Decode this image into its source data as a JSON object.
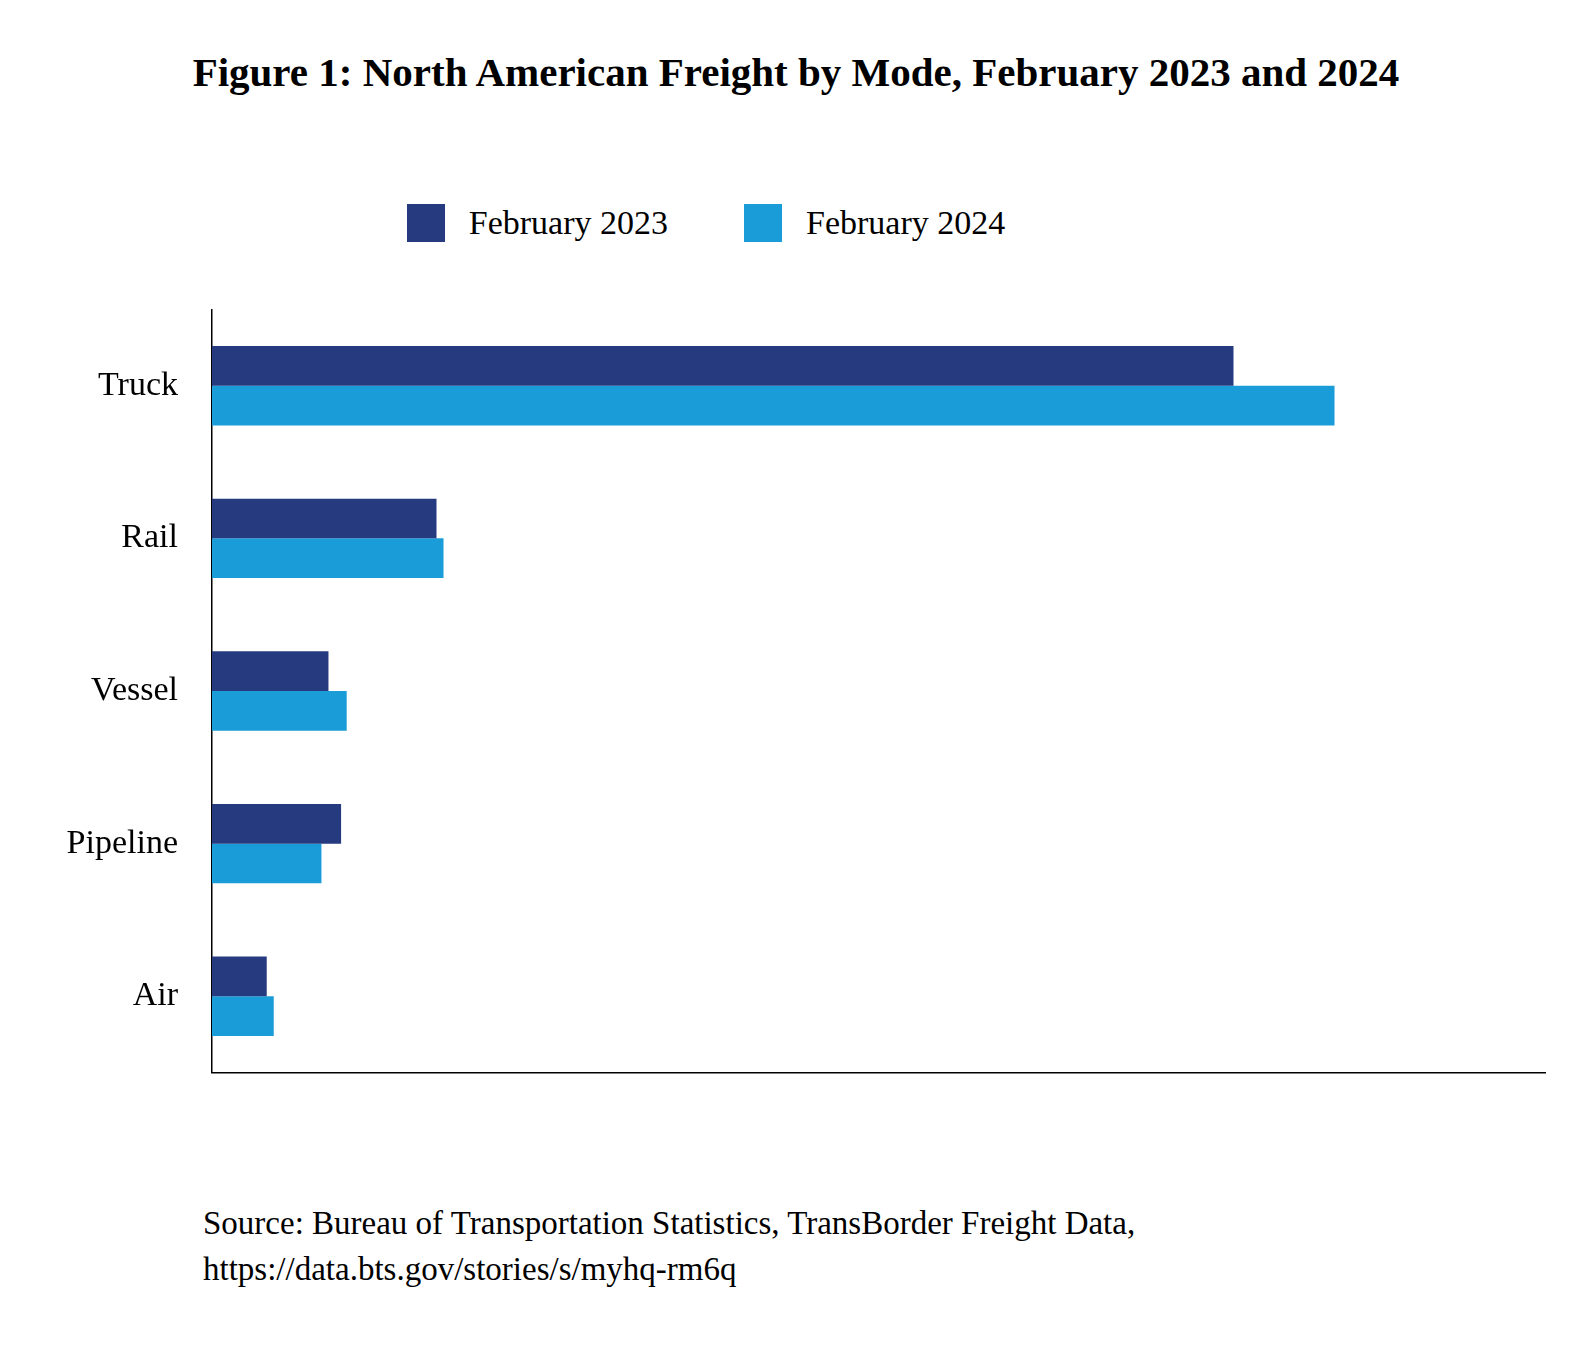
{
  "chart_data": {
    "type": "bar",
    "orientation": "horizontal",
    "title": "Figure 1: North American Freight by Mode, February 2023 and 2024",
    "categories": [
      "Truck",
      "Rail",
      "Vessel",
      "Pipeline",
      "Air"
    ],
    "series": [
      {
        "name": "February 2023",
        "color": "#253a7f",
        "values": [
          72.8,
          16.0,
          8.3,
          9.2,
          3.9
        ]
      },
      {
        "name": "February 2024",
        "color": "#1a9cd8",
        "values": [
          80.0,
          16.5,
          9.6,
          7.8,
          4.4
        ]
      }
    ],
    "xlim": [
      0,
      95
    ],
    "tick_labels": "y",
    "grid": false,
    "legend": "top",
    "source": [
      "Source: Bureau of Transportation Statistics, TransBorder Freight Data,",
      "https://data.bts.gov/stories/s/myhq-rm6q"
    ]
  }
}
